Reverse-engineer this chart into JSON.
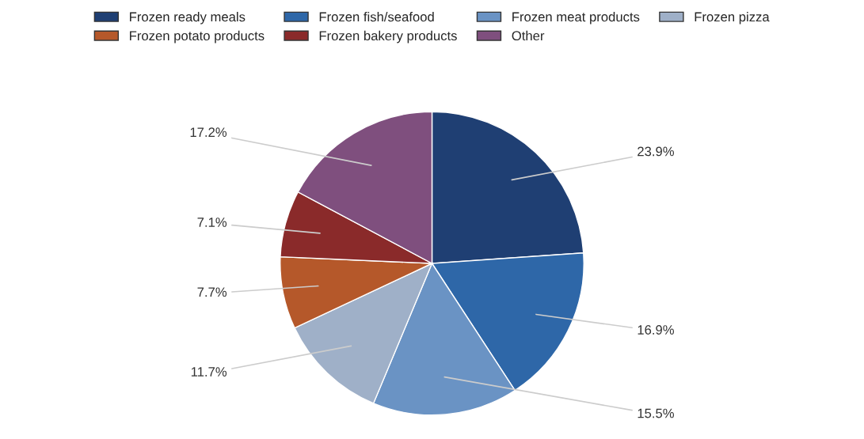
{
  "chart_data": {
    "type": "pie",
    "categories": [
      "Frozen ready meals",
      "Frozen fish/seafood",
      "Frozen meat products",
      "Frozen pizza",
      "Frozen potato products",
      "Frozen bakery products",
      "Other"
    ],
    "values": [
      23.9,
      16.9,
      15.5,
      11.7,
      7.7,
      7.1,
      17.2
    ],
    "value_labels": [
      "23.9%",
      "16.9%",
      "15.5%",
      "11.7%",
      "7.7%",
      "7.1%",
      "17.2%"
    ],
    "colors": [
      "#1f3f73",
      "#2e67a8",
      "#6a93c4",
      "#9fb0c8",
      "#b5582a",
      "#8a2a2a",
      "#7f4f7e"
    ],
    "legend": "top"
  }
}
